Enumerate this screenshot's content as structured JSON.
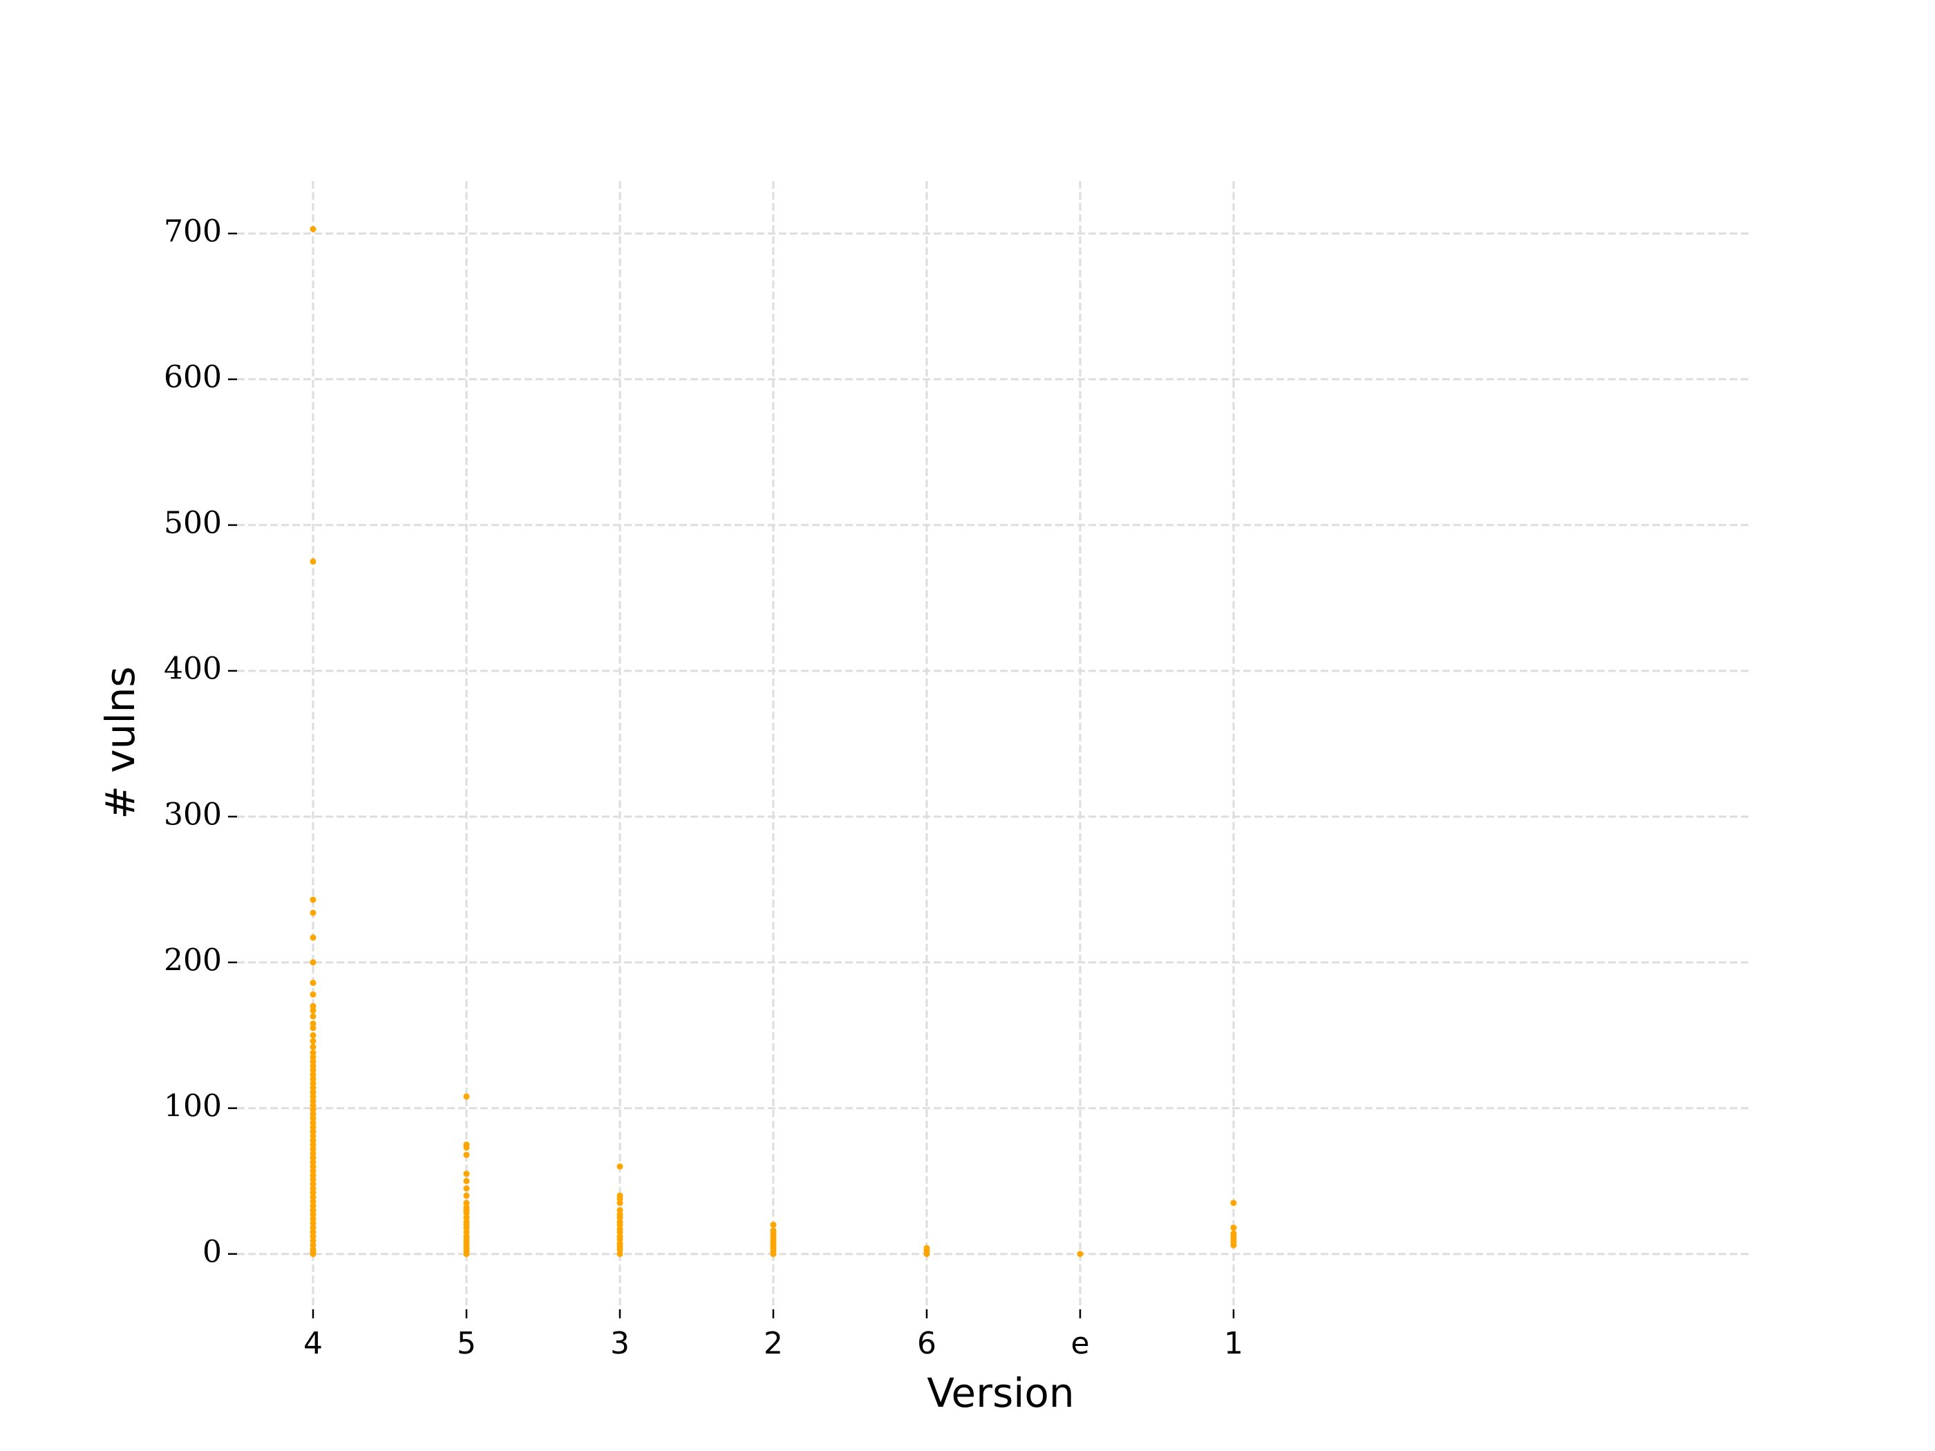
{
  "chart_data": {
    "type": "strip",
    "x_label": "Version",
    "y_label": "# vulns",
    "categories": [
      "4",
      "5",
      "3",
      "2",
      "6",
      "e",
      "1"
    ],
    "values": [
      [
        703,
        475,
        243,
        234,
        217,
        200,
        186,
        178,
        170,
        167,
        163,
        158,
        155,
        150,
        146,
        142,
        138,
        135,
        132,
        129,
        126,
        123,
        120,
        117,
        114,
        111,
        108,
        105,
        102,
        99,
        96,
        93,
        90,
        87,
        84,
        81,
        78,
        75,
        72,
        69,
        66,
        63,
        60,
        57,
        54,
        51,
        48,
        45,
        42,
        39,
        36,
        33,
        30,
        27,
        24,
        21,
        18,
        15,
        12,
        9,
        6,
        3,
        1,
        0
      ],
      [
        108,
        75,
        73,
        68,
        55,
        50,
        45,
        40,
        35,
        32,
        30,
        28,
        25,
        22,
        20,
        18,
        15,
        12,
        10,
        8,
        6,
        4,
        2,
        0
      ],
      [
        60,
        40,
        38,
        35,
        30,
        27,
        25,
        22,
        20,
        17,
        15,
        12,
        10,
        7,
        5,
        3,
        0
      ],
      [
        20,
        16,
        14,
        12,
        10,
        8,
        6,
        4,
        2,
        0
      ],
      [
        4,
        2,
        0
      ],
      [
        0
      ],
      [
        35,
        18,
        14,
        12,
        10,
        8,
        6
      ]
    ],
    "color": "#ffa500",
    "ylim": [
      -38,
      736
    ],
    "yticks": [
      0,
      100,
      200,
      300,
      400,
      500,
      600,
      700
    ],
    "grid": true
  }
}
